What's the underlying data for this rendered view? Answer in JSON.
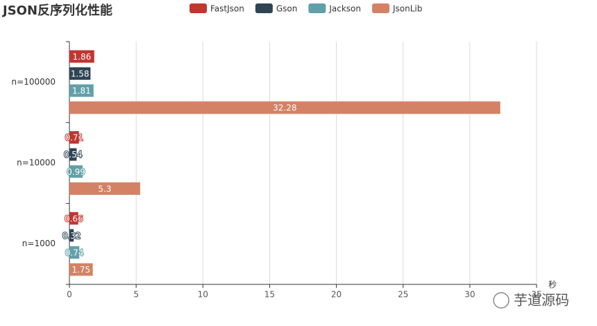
{
  "chart_data": {
    "type": "hbar",
    "title": "JSON反序列化性能",
    "categories": [
      "n=1000",
      "n=10000",
      "n=100000"
    ],
    "series": [
      {
        "name": "FastJson",
        "color": "#c23531",
        "values": [
          0.66,
          0.71,
          1.86
        ]
      },
      {
        "name": "Gson",
        "color": "#2f4554",
        "values": [
          0.32,
          0.54,
          1.58
        ]
      },
      {
        "name": "Jackson",
        "color": "#61a0a8",
        "values": [
          0.74,
          0.99,
          1.81
        ]
      },
      {
        "name": "JsonLib",
        "color": "#d48265",
        "values": [
          1.75,
          5.3,
          32.28
        ]
      }
    ],
    "xlabel": "秒",
    "xlim": [
      0,
      35
    ],
    "xticks": [
      0,
      5,
      10,
      15,
      20,
      25,
      30,
      35
    ],
    "grid": true
  },
  "watermark": "芋道源码"
}
